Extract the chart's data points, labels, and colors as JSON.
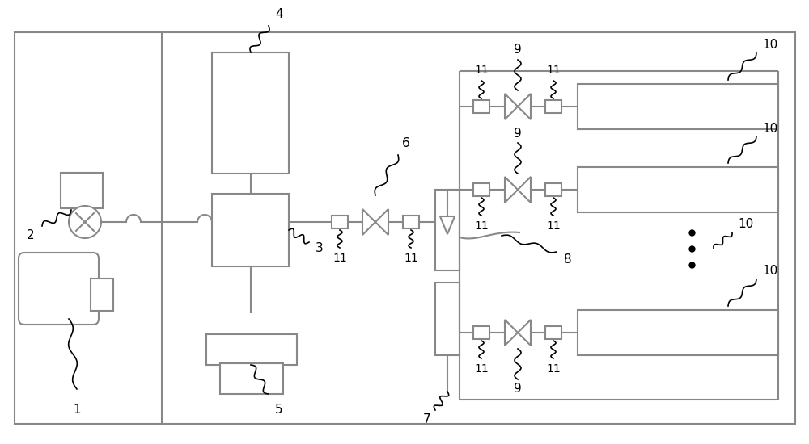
{
  "bg": "#ffffff",
  "lc": "#888888",
  "lw": 1.5,
  "blk": "#000000",
  "fig_w": 10.0,
  "fig_h": 5.5,
  "dpi": 100
}
